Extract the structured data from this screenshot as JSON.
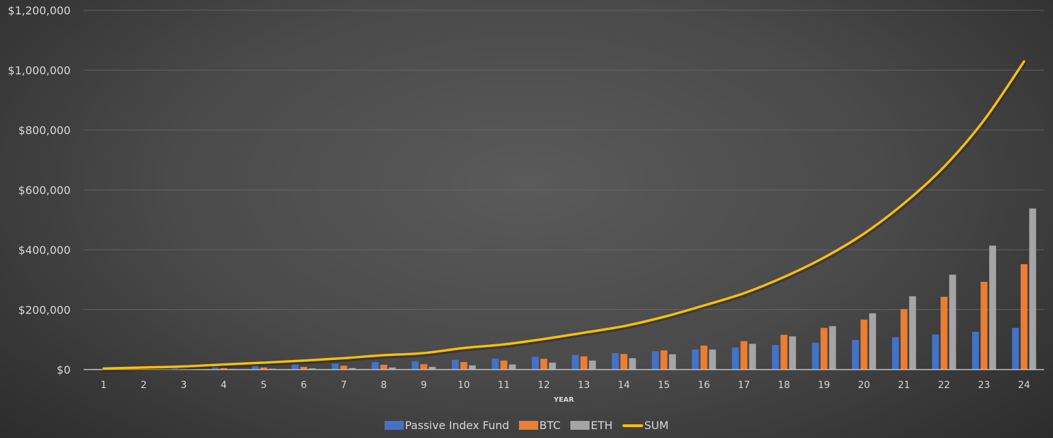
{
  "chart_data": {
    "type": "bar",
    "title": "",
    "xlabel": "YEAR",
    "ylabel": "",
    "ylim": [
      0,
      1200000
    ],
    "y_ticks": [
      "$0",
      "$200,000",
      "$400,000",
      "$600,000",
      "$800,000",
      "$1,000,000",
      "$1,200,000"
    ],
    "y_tick_values": [
      0,
      200000,
      400000,
      600000,
      800000,
      1000000,
      1200000
    ],
    "grid": true,
    "legend_position": "bottom",
    "categories": [
      "1",
      "2",
      "3",
      "4",
      "5",
      "6",
      "7",
      "8",
      "9",
      "10",
      "11",
      "12",
      "13",
      "14",
      "15",
      "16",
      "17",
      "18",
      "19",
      "20",
      "21",
      "22",
      "23",
      "24"
    ],
    "series": [
      {
        "name": "Passive Index Fund",
        "type": "bar",
        "color": "#4472c4",
        "values": [
          2000,
          4000,
          6000,
          10000,
          13000,
          17000,
          20000,
          25000,
          28000,
          33000,
          37000,
          43000,
          49000,
          55000,
          61000,
          67000,
          74000,
          82000,
          90000,
          99000,
          108000,
          117000,
          126000,
          139000
        ]
      },
      {
        "name": "BTC",
        "type": "bar",
        "color": "#ed7d31",
        "values": [
          1000,
          2000,
          3000,
          5000,
          7000,
          9000,
          13000,
          16000,
          18000,
          25000,
          30000,
          36000,
          44000,
          52000,
          64000,
          80000,
          95000,
          116000,
          139000,
          167000,
          202000,
          243000,
          293000,
          352000
        ]
      },
      {
        "name": "ETH",
        "type": "bar",
        "color": "#a5a5a5",
        "values": [
          500,
          1000,
          1500,
          2000,
          3000,
          4000,
          5000,
          7000,
          9000,
          14000,
          17000,
          23000,
          30000,
          38000,
          51000,
          67000,
          86000,
          111000,
          145000,
          188000,
          245000,
          317000,
          414000,
          538000
        ]
      },
      {
        "name": "SUM",
        "type": "line",
        "color": "#ffc000",
        "values": [
          3500,
          7000,
          10500,
          17000,
          23000,
          30000,
          38000,
          48000,
          55000,
          72000,
          84000,
          102000,
          123000,
          145000,
          176000,
          214000,
          255000,
          309000,
          374000,
          454000,
          555000,
          677000,
          833000,
          1029000
        ]
      }
    ]
  },
  "legend": {
    "items": [
      {
        "label": "Passive Index Fund",
        "kind": "bar",
        "color": "#4472c4"
      },
      {
        "label": "BTC",
        "kind": "bar",
        "color": "#ed7d31"
      },
      {
        "label": "ETH",
        "kind": "bar",
        "color": "#a5a5a5"
      },
      {
        "label": "SUM",
        "kind": "line",
        "color": "#ffc000"
      }
    ]
  }
}
